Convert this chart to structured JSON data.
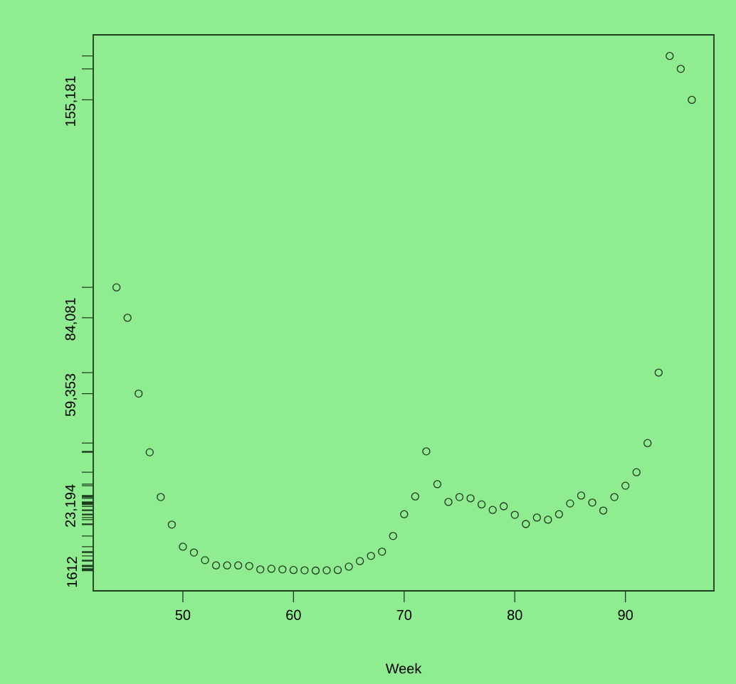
{
  "chart_data": {
    "type": "scatter",
    "xlabel": "Week",
    "x": [
      44,
      45,
      46,
      47,
      48,
      49,
      50,
      51,
      52,
      53,
      54,
      55,
      56,
      57,
      58,
      59,
      60,
      61,
      62,
      63,
      64,
      65,
      66,
      67,
      68,
      69,
      70,
      71,
      72,
      73,
      74,
      75,
      76,
      77,
      78,
      79,
      80,
      81,
      82,
      83,
      84,
      85,
      86,
      87,
      88,
      89,
      90,
      91,
      92,
      93,
      94,
      95,
      96
    ],
    "values": [
      94000,
      84081,
      59353,
      40200,
      25600,
      16600,
      9400,
      7500,
      5000,
      3300,
      3300,
      3300,
      3100,
      2000,
      2200,
      2000,
      1800,
      1700,
      1612,
      1700,
      1800,
      2900,
      4700,
      6400,
      7800,
      12900,
      20000,
      25800,
      40500,
      29800,
      24000,
      25600,
      25200,
      23194,
      21400,
      22600,
      19800,
      16800,
      18900,
      18200,
      20000,
      23500,
      26100,
      23800,
      21200,
      25600,
      29300,
      33700,
      43200,
      66200,
      169500,
      165300,
      155181
    ],
    "color": "#1c331c",
    "marker": "circle",
    "xlim": [
      41.9,
      98
    ],
    "xticks": [
      50,
      60,
      70,
      80,
      90
    ],
    "ylim": [
      -5000,
      176400
    ],
    "yticks": [
      {
        "value": 1612,
        "label": "1612"
      },
      {
        "value": 23194,
        "label": "23,194"
      },
      {
        "value": 59353,
        "label": "59,353"
      },
      {
        "value": 84081,
        "label": "84,081"
      },
      {
        "value": 155181,
        "label": "155,181"
      },
      {
        "value": 94000,
        "label": null
      },
      {
        "value": 40200,
        "label": null
      },
      {
        "value": 25600,
        "label": null
      },
      {
        "value": 16600,
        "label": null
      },
      {
        "value": 9400,
        "label": null
      },
      {
        "value": 7500,
        "label": null
      },
      {
        "value": 5000,
        "label": null
      },
      {
        "value": 3300,
        "label": null
      },
      {
        "value": 3100,
        "label": null
      },
      {
        "value": 2000,
        "label": null
      },
      {
        "value": 2200,
        "label": null
      },
      {
        "value": 1800,
        "label": null
      },
      {
        "value": 1700,
        "label": null
      },
      {
        "value": 2900,
        "label": null
      },
      {
        "value": 4700,
        "label": null
      },
      {
        "value": 6400,
        "label": null
      },
      {
        "value": 7800,
        "label": null
      },
      {
        "value": 12900,
        "label": null
      },
      {
        "value": 20000,
        "label": null
      },
      {
        "value": 25800,
        "label": null
      },
      {
        "value": 40500,
        "label": null
      },
      {
        "value": 29800,
        "label": null
      },
      {
        "value": 24000,
        "label": null
      },
      {
        "value": 25200,
        "label": null
      },
      {
        "value": 21400,
        "label": null
      },
      {
        "value": 22600,
        "label": null
      },
      {
        "value": 19800,
        "label": null
      },
      {
        "value": 16800,
        "label": null
      },
      {
        "value": 18900,
        "label": null
      },
      {
        "value": 18200,
        "label": null
      },
      {
        "value": 23500,
        "label": null
      },
      {
        "value": 26100,
        "label": null
      },
      {
        "value": 23800,
        "label": null
      },
      {
        "value": 21200,
        "label": null
      },
      {
        "value": 29300,
        "label": null
      },
      {
        "value": 33700,
        "label": null
      },
      {
        "value": 43200,
        "label": null
      },
      {
        "value": 66200,
        "label": null
      },
      {
        "value": 169500,
        "label": null
      },
      {
        "value": 165300,
        "label": null
      }
    ],
    "grid": false
  }
}
